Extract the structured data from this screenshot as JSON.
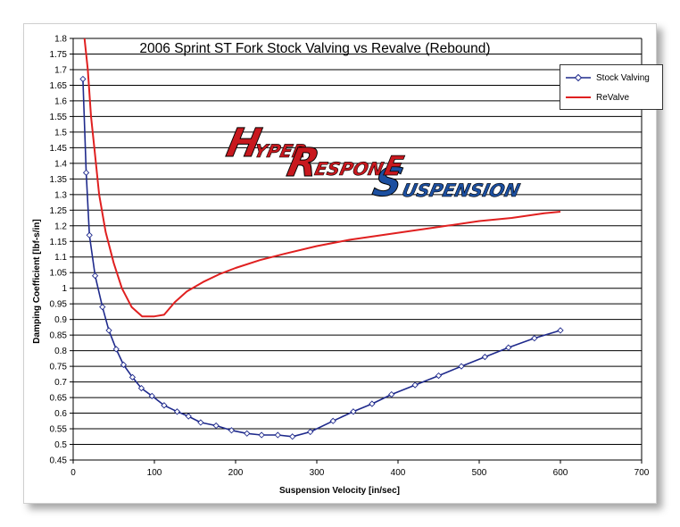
{
  "chart_data": {
    "type": "line",
    "title": "2006 Sprint ST Fork Stock Valving vs Revalve (Rebound)",
    "xlabel": "Suspension Velocity [in/sec]",
    "ylabel": "Damping Coefficient  [lbf-s/in]",
    "xlim": [
      0,
      700
    ],
    "ylim": [
      0.45,
      1.8
    ],
    "xticks": [
      "0",
      "100",
      "200",
      "300",
      "400",
      "500",
      "600",
      "700"
    ],
    "yticks": [
      "0.45",
      "0.5",
      "0.55",
      "0.6",
      "0.65",
      "0.7",
      "0.75",
      "0.8",
      "0.85",
      "0.9",
      "0.95",
      "1",
      "1.05",
      "1.1",
      "1.15",
      "1.2",
      "1.25",
      "1.3",
      "1.35",
      "1.4",
      "1.45",
      "1.5",
      "1.55",
      "1.6",
      "1.65",
      "1.7",
      "1.75",
      "1.8"
    ],
    "grid": "horizontal",
    "legend_position": "top-right",
    "series": [
      {
        "name": "Stock Valving",
        "color": "#1f2a8c",
        "marker": "diamond",
        "points": [
          [
            12,
            1.67
          ],
          [
            16,
            1.37
          ],
          [
            20,
            1.17
          ],
          [
            27,
            1.04
          ],
          [
            36,
            0.94
          ],
          [
            44,
            0.865
          ],
          [
            53,
            0.805
          ],
          [
            62,
            0.755
          ],
          [
            73,
            0.715
          ],
          [
            84,
            0.68
          ],
          [
            97,
            0.655
          ],
          [
            112,
            0.625
          ],
          [
            128,
            0.605
          ],
          [
            142,
            0.59
          ],
          [
            157,
            0.57
          ],
          [
            176,
            0.56
          ],
          [
            195,
            0.545
          ],
          [
            214,
            0.535
          ],
          [
            232,
            0.53
          ],
          [
            252,
            0.53
          ],
          [
            270,
            0.525
          ],
          [
            292,
            0.54
          ],
          [
            320,
            0.575
          ],
          [
            345,
            0.605
          ],
          [
            368,
            0.63
          ],
          [
            392,
            0.66
          ],
          [
            421,
            0.69
          ],
          [
            450,
            0.72
          ],
          [
            478,
            0.75
          ],
          [
            507,
            0.78
          ],
          [
            536,
            0.81
          ],
          [
            568,
            0.84
          ],
          [
            600,
            0.865
          ]
        ]
      },
      {
        "name": "ReValve",
        "color": "#e02020",
        "marker": "none",
        "points": [
          [
            14,
            1.8
          ],
          [
            18,
            1.7
          ],
          [
            22,
            1.55
          ],
          [
            26,
            1.45
          ],
          [
            32,
            1.3
          ],
          [
            40,
            1.18
          ],
          [
            50,
            1.08
          ],
          [
            60,
            1.0
          ],
          [
            72,
            0.94
          ],
          [
            85,
            0.91
          ],
          [
            100,
            0.91
          ],
          [
            112,
            0.915
          ],
          [
            125,
            0.955
          ],
          [
            140,
            0.99
          ],
          [
            160,
            1.02
          ],
          [
            180,
            1.045
          ],
          [
            200,
            1.065
          ],
          [
            230,
            1.09
          ],
          [
            260,
            1.11
          ],
          [
            300,
            1.135
          ],
          [
            340,
            1.155
          ],
          [
            380,
            1.17
          ],
          [
            420,
            1.185
          ],
          [
            460,
            1.2
          ],
          [
            500,
            1.215
          ],
          [
            540,
            1.225
          ],
          [
            580,
            1.24
          ],
          [
            600,
            1.245
          ]
        ]
      }
    ]
  },
  "logo": {
    "h": "H",
    "yper": "YPER",
    "r": "R",
    "espon": "ESPON",
    "s": "S",
    "e": "E",
    "uspension": "USPENSION"
  }
}
